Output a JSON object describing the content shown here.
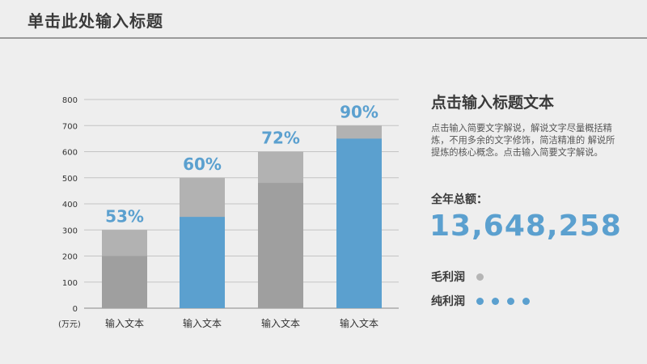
{
  "slide": {
    "title": "单击此处输入标题"
  },
  "panel": {
    "heading": "点击输入标题文本",
    "description": "点击输入简要文字解说，解说文字尽量概括精炼，不用多余的文字修饰，简洁精准的 解说所提炼的核心概念。点击输入简要文字解说。",
    "total_label": "全年总额：",
    "total_value": "13,648,258"
  },
  "legend": {
    "gross_label": "毛利润",
    "net_label": "纯利润"
  },
  "colors": {
    "gross": "#b2b2b2",
    "gross_base": "#9f9f9f",
    "net": "#5ba0cf",
    "axis_text": "#333333",
    "grid": "#c4c4c4"
  },
  "chart_data": {
    "type": "bar",
    "ylim": [
      0,
      800
    ],
    "yticks": [
      0,
      100,
      200,
      300,
      400,
      500,
      600,
      700,
      800
    ],
    "unit_label": "(万元)",
    "grid": true,
    "categories": [
      "输入文本",
      "输入文本",
      "输入文本",
      "输入文本"
    ],
    "series": [
      {
        "name": "毛利润",
        "values": [
          300,
          500,
          600,
          700
        ]
      },
      {
        "name": "纯利润",
        "values": [
          200,
          350,
          480,
          650
        ]
      }
    ],
    "highlight_net": [
      false,
      true,
      false,
      true
    ],
    "percent_labels": [
      "53%",
      "60%",
      "72%",
      "90%"
    ]
  }
}
